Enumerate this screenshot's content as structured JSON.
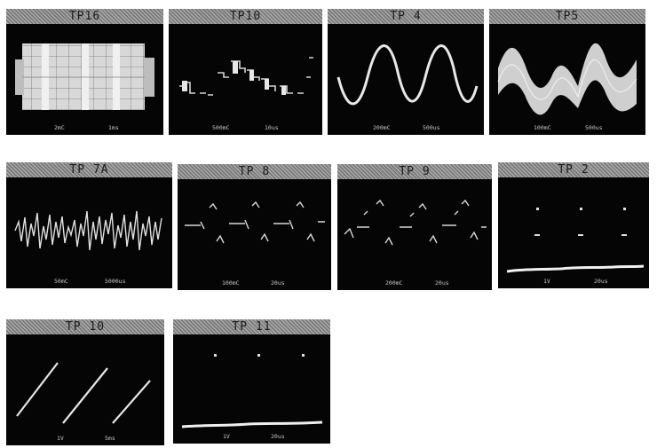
{
  "panels": [
    {
      "label": "TP16",
      "volts": "2mC",
      "time": "1ms",
      "type": "burst"
    },
    {
      "label": "TP10",
      "volts": "500mC",
      "time": "10us",
      "type": "steps"
    },
    {
      "label": "TP 4",
      "volts": "200mC",
      "time": "500us",
      "type": "sine"
    },
    {
      "label": "TP5",
      "volts": "100mC",
      "time": "500us",
      "type": "fuzzy-sine"
    },
    {
      "label": "TP 7A",
      "volts": "50mC",
      "time": "5000us",
      "type": "noise"
    },
    {
      "label": "TP 8",
      "volts": "100mC",
      "time": "20us",
      "type": "pulses-a"
    },
    {
      "label": "TP 9",
      "volts": "200mC",
      "time": "20us",
      "type": "pulses-b"
    },
    {
      "label": "TP 2",
      "volts": "1V",
      "time": "20us",
      "type": "dots"
    },
    {
      "label": "TP 10",
      "volts": "1V",
      "time": "5ms",
      "type": "sawtooth"
    },
    {
      "label": "TP 11",
      "volts": "1V",
      "time": "20us",
      "type": "dots2"
    }
  ]
}
